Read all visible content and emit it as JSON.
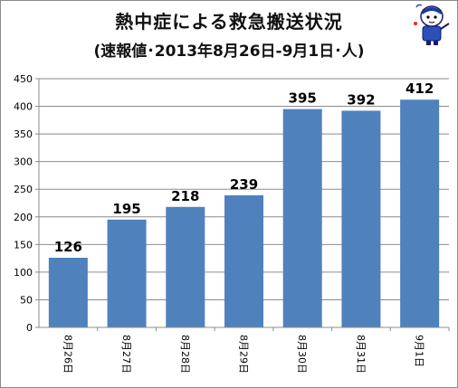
{
  "chart_data": {
    "type": "bar",
    "title": "熱中症による救急搬送状況",
    "subtitle": "(速報値･2013年8月26日-9月1日･人)",
    "categories": [
      "8月26日",
      "8月27日",
      "8月28日",
      "8月29日",
      "8月30日",
      "8月31日",
      "9月1日"
    ],
    "values": [
      126,
      195,
      218,
      239,
      395,
      392,
      412
    ],
    "ylim": [
      0,
      450
    ],
    "yticks": [
      0,
      50,
      100,
      150,
      200,
      250,
      300,
      350,
      400,
      450
    ],
    "grid": true,
    "bar_color": "#4f81bd"
  }
}
